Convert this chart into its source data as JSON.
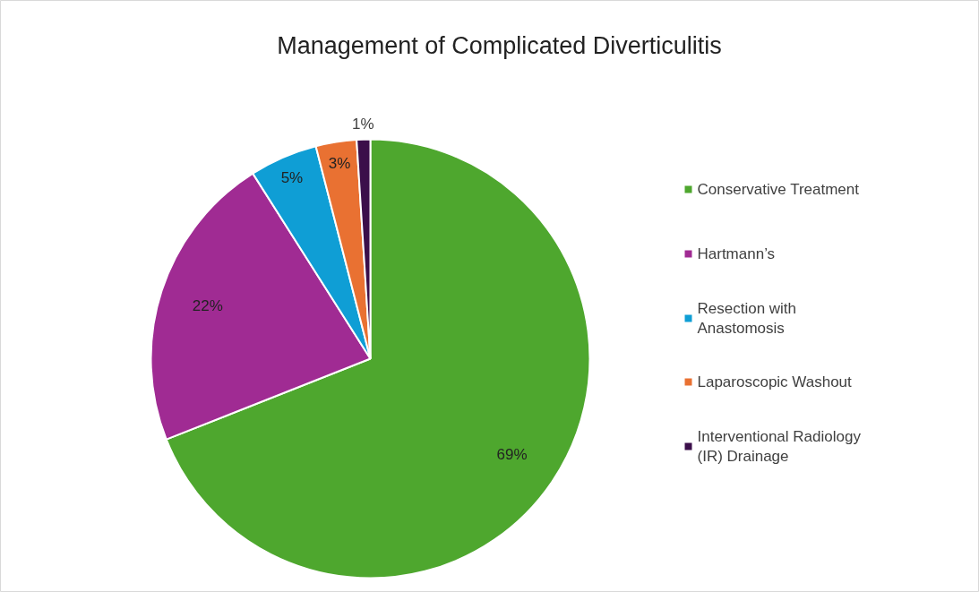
{
  "chart_data": {
    "type": "pie",
    "title": "Management of Complicated Diverticulitis",
    "categories": [
      "Conservative Treatment",
      "Hartmann’s",
      "Resection with Anastomosis",
      "Laparoscopic Washout",
      "Interventional Radiology (IR) Drainage"
    ],
    "values": [
      69,
      22,
      5,
      3,
      1
    ],
    "colors": [
      "#4ea72e",
      "#a02b93",
      "#0f9ed5",
      "#e97132",
      "#3b0f4a"
    ],
    "value_labels": [
      "69%",
      "22%",
      "5%",
      "3%",
      "1%"
    ],
    "legend": "right"
  }
}
